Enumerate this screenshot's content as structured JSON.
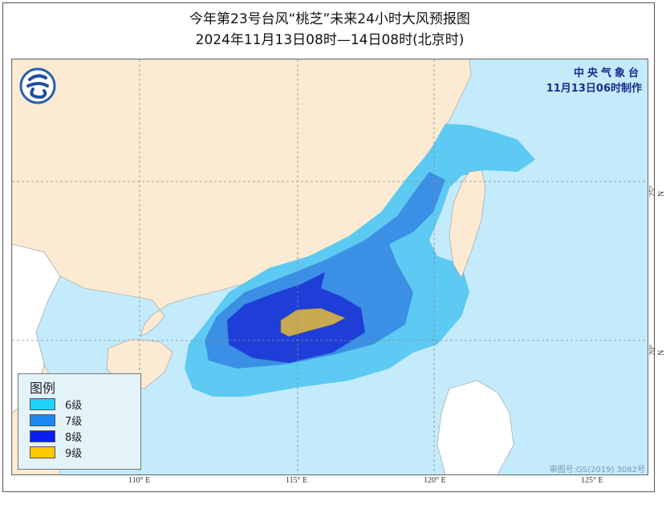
{
  "title": {
    "line1": "今年第23号台风“桃芝”未来24小时大风预报图",
    "line2": "2024年11月13日08时—14日08时(北京时)"
  },
  "agency": {
    "name": "中央气象台",
    "issued": "11月13日06时制作"
  },
  "legend": {
    "title": "图例",
    "items": [
      {
        "label": "6级",
        "color": "#1fd0f8"
      },
      {
        "label": "7级",
        "color": "#1a88f0"
      },
      {
        "label": "8级",
        "color": "#0a1ef0"
      },
      {
        "label": "9级",
        "color": "#ffc800"
      }
    ]
  },
  "axes": {
    "longitude_ticks": [
      "110° E",
      "115° E",
      "120° E",
      "125° E"
    ],
    "latitude_ticks": [
      "25° N",
      "20° N"
    ]
  },
  "approval_number": "审图号:GS(2019) 3082号",
  "colors": {
    "land": "#fcebd2",
    "sea": "#c4ebfb",
    "foreign_land": "#ffffff",
    "wind6": "#5ccaf2",
    "wind7": "#3b8fe4",
    "wind8": "#1f3ed8",
    "wind9": "#c9aa52"
  }
}
